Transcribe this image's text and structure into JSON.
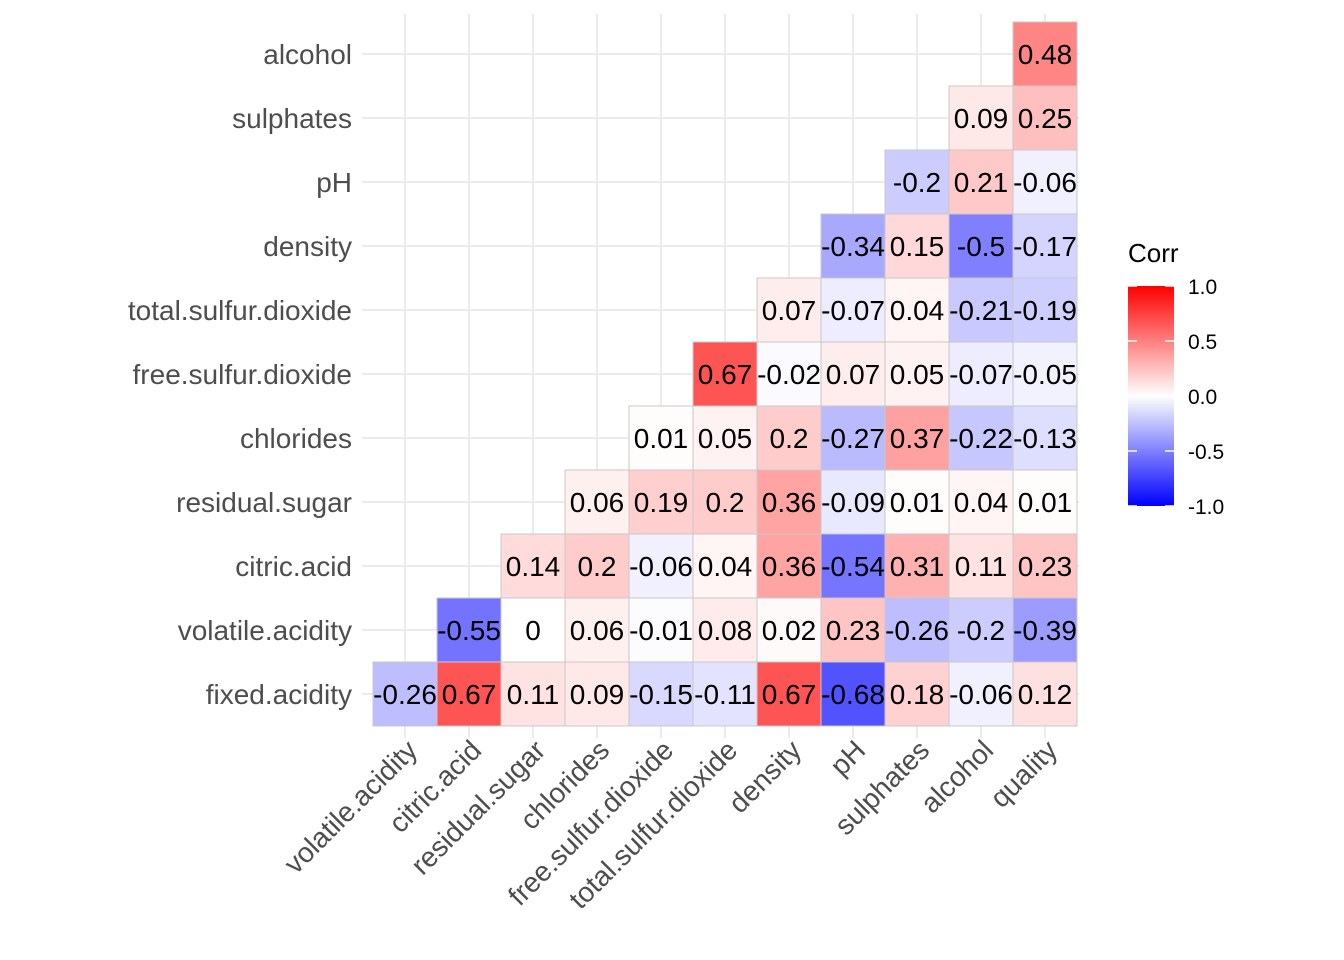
{
  "chart_data": {
    "type": "heatmap",
    "title": "",
    "xlabel": "",
    "ylabel": "",
    "x_categories": [
      "volatile.acidity",
      "citric.acid",
      "residual.sugar",
      "chlorides",
      "free.sulfur.dioxide",
      "total.sulfur.dioxide",
      "density",
      "pH",
      "sulphates",
      "alcohol",
      "quality"
    ],
    "y_categories": [
      "fixed.acidity",
      "volatile.acidity",
      "citric.acid",
      "residual.sugar",
      "chlorides",
      "free.sulfur.dioxide",
      "total.sulfur.dioxide",
      "density",
      "pH",
      "sulphates",
      "alcohol"
    ],
    "values": [
      [
        -0.26,
        0.67,
        0.11,
        0.09,
        -0.15,
        -0.11,
        0.67,
        -0.68,
        0.18,
        -0.06,
        0.12
      ],
      [
        null,
        -0.55,
        0,
        0.06,
        -0.01,
        0.08,
        0.02,
        0.23,
        -0.26,
        -0.2,
        -0.39
      ],
      [
        null,
        null,
        0.14,
        0.2,
        -0.06,
        0.04,
        0.36,
        -0.54,
        0.31,
        0.11,
        0.23
      ],
      [
        null,
        null,
        null,
        0.06,
        0.19,
        0.2,
        0.36,
        -0.09,
        0.01,
        0.04,
        0.01
      ],
      [
        null,
        null,
        null,
        null,
        0.01,
        0.05,
        0.2,
        -0.27,
        0.37,
        -0.22,
        -0.13
      ],
      [
        null,
        null,
        null,
        null,
        null,
        0.67,
        -0.02,
        0.07,
        0.05,
        -0.07,
        -0.05
      ],
      [
        null,
        null,
        null,
        null,
        null,
        null,
        0.07,
        -0.07,
        0.04,
        -0.21,
        -0.19
      ],
      [
        null,
        null,
        null,
        null,
        null,
        null,
        null,
        -0.34,
        0.15,
        -0.5,
        -0.17
      ],
      [
        null,
        null,
        null,
        null,
        null,
        null,
        null,
        null,
        -0.2,
        0.21,
        -0.06
      ],
      [
        null,
        null,
        null,
        null,
        null,
        null,
        null,
        null,
        null,
        0.09,
        0.25
      ],
      [
        null,
        null,
        null,
        null,
        null,
        null,
        null,
        null,
        null,
        null,
        0.48
      ]
    ],
    "color_scale": {
      "low": "#0000ff",
      "mid": "#ffffff",
      "high": "#ff0000",
      "limits": [
        -1,
        1
      ]
    },
    "grid": true,
    "legend": {
      "title": "Corr",
      "position": "right",
      "ticks": [
        1.0,
        0.5,
        0.0,
        -0.5,
        -1.0
      ],
      "tick_labels": [
        "1.0",
        "0.5",
        "0.0",
        "-0.5",
        "-1.0"
      ]
    }
  }
}
